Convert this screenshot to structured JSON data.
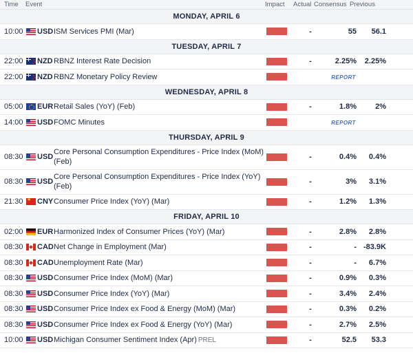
{
  "header": {
    "time": "Time",
    "event": "Event",
    "impact": "Impact",
    "actual": "Actual",
    "consensus": "Consensus",
    "previous": "Previous"
  },
  "colors": {
    "impact_high": "#d9534f",
    "report_link": "#4a6fb5"
  },
  "days": [
    {
      "label": "MONDAY, APRIL 6",
      "events": [
        {
          "time": "10:00",
          "flag": "us-flag-icon",
          "currency": "USD",
          "event": "ISM Services PMI (Mar)",
          "actual": "-",
          "consensus": "55",
          "previous": "56.1"
        }
      ]
    },
    {
      "label": "TUESDAY, APRIL 7",
      "events": [
        {
          "time": "22:00",
          "flag": "nz-flag-icon",
          "currency": "NZD",
          "event": "RBNZ Interest Rate Decision",
          "actual": "-",
          "consensus": "2.25%",
          "previous": "2.25%"
        },
        {
          "time": "22:00",
          "flag": "nz-flag-icon",
          "currency": "NZD",
          "event": "RBNZ Monetary Policy Review",
          "report": "REPORT"
        }
      ]
    },
    {
      "label": "WEDNESDAY, APRIL 8",
      "events": [
        {
          "time": "05:00",
          "flag": "eu-flag-icon",
          "currency": "EUR",
          "event": "Retail Sales (YoY) (Feb)",
          "actual": "-",
          "consensus": "1.8%",
          "previous": "2%"
        },
        {
          "time": "14:00",
          "flag": "us-flag-icon",
          "currency": "USD",
          "event": "FOMC Minutes",
          "report": "REPORT"
        }
      ]
    },
    {
      "label": "THURSDAY, APRIL 9",
      "events": [
        {
          "time": "08:30",
          "flag": "us-flag-icon",
          "currency": "USD",
          "event": "Core Personal Consumption Expenditures - Price Index (MoM) (Feb)",
          "actual": "-",
          "consensus": "0.4%",
          "previous": "0.4%"
        },
        {
          "time": "08:30",
          "flag": "us-flag-icon",
          "currency": "USD",
          "event": "Core Personal Consumption Expenditures - Price Index (YoY) (Feb)",
          "actual": "-",
          "consensus": "3%",
          "previous": "3.1%"
        },
        {
          "time": "21:30",
          "flag": "cn-flag-icon",
          "currency": "CNY",
          "event": "Consumer Price Index (YoY) (Mar)",
          "actual": "-",
          "consensus": "1.2%",
          "previous": "1.3%"
        }
      ]
    },
    {
      "label": "FRIDAY, APRIL 10",
      "events": [
        {
          "time": "02:00",
          "flag": "de-flag-icon",
          "currency": "EUR",
          "event": "Harmonized Index of Consumer Prices (YoY) (Mar)",
          "actual": "-",
          "consensus": "2.8%",
          "previous": "2.8%"
        },
        {
          "time": "08:30",
          "flag": "ca-flag-icon",
          "currency": "CAD",
          "event": "Net Change in Employment (Mar)",
          "actual": "-",
          "consensus": "-",
          "previous": "-83.9K"
        },
        {
          "time": "08:30",
          "flag": "ca-flag-icon",
          "currency": "CAD",
          "event": "Unemployment Rate (Mar)",
          "actual": "-",
          "consensus": "-",
          "previous": "6.7%"
        },
        {
          "time": "08:30",
          "flag": "us-flag-icon",
          "currency": "USD",
          "event": "Consumer Price Index (MoM) (Mar)",
          "actual": "-",
          "consensus": "0.9%",
          "previous": "0.3%"
        },
        {
          "time": "08:30",
          "flag": "us-flag-icon",
          "currency": "USD",
          "event": "Consumer Price Index (YoY) (Mar)",
          "actual": "-",
          "consensus": "3.4%",
          "previous": "2.4%"
        },
        {
          "time": "08:30",
          "flag": "us-flag-icon",
          "currency": "USD",
          "event": "Consumer Price Index ex Food & Energy (MoM) (Mar)",
          "actual": "-",
          "consensus": "0.3%",
          "previous": "0.2%"
        },
        {
          "time": "08:30",
          "flag": "us-flag-icon",
          "currency": "USD",
          "event": "Consumer Price Index ex Food & Energy (YoY) (Mar)",
          "actual": "-",
          "consensus": "2.7%",
          "previous": "2.5%"
        },
        {
          "time": "10:00",
          "flag": "us-flag-icon",
          "currency": "USD",
          "event": "Michigan Consumer Sentiment Index (Apr)",
          "tag": "PREL",
          "actual": "-",
          "consensus": "52.5",
          "previous": "53.3"
        }
      ]
    }
  ]
}
